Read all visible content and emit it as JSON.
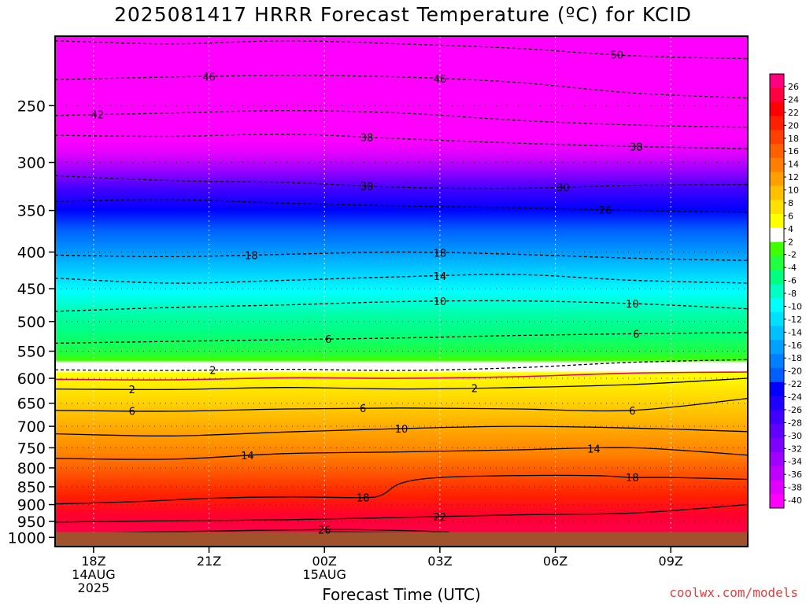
{
  "title": "2025081417 HRRR Forecast Temperature (ºC) for KCID",
  "credit": "coolwx.com/models",
  "chart_data": {
    "type": "heatmap",
    "title": "2025081417 HRRR Forecast Temperature (ºC) for KCID",
    "xlabel": "Forecast Time (UTC)",
    "ylabel": "",
    "x_ticks": [
      {
        "hour": 1,
        "lines": [
          "18Z",
          "14AUG",
          "2025"
        ]
      },
      {
        "hour": 4,
        "lines": [
          "21Z"
        ]
      },
      {
        "hour": 7,
        "lines": [
          "00Z",
          "15AUG"
        ]
      },
      {
        "hour": 10,
        "lines": [
          "03Z"
        ]
      },
      {
        "hour": 13,
        "lines": [
          "06Z"
        ]
      },
      {
        "hour": 16,
        "lines": [
          "09Z"
        ]
      }
    ],
    "x_range_hours": [
      0,
      18
    ],
    "y_ticks": [
      250,
      300,
      350,
      400,
      450,
      500,
      550,
      600,
      650,
      700,
      750,
      800,
      850,
      900,
      950,
      1000
    ],
    "y_range_mb": [
      200,
      1030
    ],
    "y_scale": "log-pressure",
    "colorbar_ticks": [
      26,
      24,
      22,
      20,
      18,
      16,
      14,
      12,
      10,
      8,
      6,
      4,
      2,
      -2,
      -4,
      -6,
      -8,
      -10,
      -12,
      -14,
      -16,
      -18,
      -20,
      -22,
      -24,
      -26,
      -28,
      -30,
      -32,
      -34,
      -36,
      -38,
      -40
    ],
    "colorbar_colors": [
      "#ff0080",
      "#ff0040",
      "#ff0000",
      "#ff2000",
      "#ff4000",
      "#ff6000",
      "#ff8000",
      "#ffa000",
      "#ffc000",
      "#ffe000",
      "#ffff00",
      "#ffffff",
      "#40ff00",
      "#20ff40",
      "#00ff80",
      "#00ffc0",
      "#00ffff",
      "#00e0ff",
      "#00c0ff",
      "#00a0ff",
      "#0080ff",
      "#0060ff",
      "#0000ff",
      "#2000ff",
      "#4000ff",
      "#6000ff",
      "#8000ff",
      "#a000ff",
      "#c000ff",
      "#e000ff",
      "#ff00ff"
    ],
    "ground_color": "#a0522d",
    "grid": true,
    "contours": [
      {
        "value": 50,
        "style": "dashed",
        "x": [
          0,
          3,
          6,
          9,
          12,
          15,
          18
        ],
        "y_mb": [
          203,
          205,
          203,
          205,
          208,
          213,
          215
        ],
        "labels": [
          {
            "text": "50",
            "hour": 14.6
          }
        ]
      },
      {
        "value": 46,
        "style": "dashed",
        "x": [
          0,
          3,
          6,
          9,
          12,
          15,
          18
        ],
        "y_mb": [
          230,
          228,
          227,
          228,
          232,
          240,
          244
        ],
        "labels": [
          {
            "text": "46",
            "hour": 4
          },
          {
            "text": "46",
            "hour": 10
          }
        ]
      },
      {
        "value": 42,
        "style": "dashed",
        "x": [
          0,
          3,
          6,
          9,
          12,
          15,
          18
        ],
        "y_mb": [
          258,
          256,
          254,
          256,
          262,
          266,
          268
        ],
        "labels": [
          {
            "text": "42",
            "hour": 1.1
          }
        ]
      },
      {
        "value": 38,
        "style": "dashed",
        "x": [
          0,
          3,
          6,
          9,
          12,
          15,
          18
        ],
        "y_mb": [
          275,
          276,
          274,
          278,
          282,
          285,
          287
        ],
        "labels": [
          {
            "text": "38",
            "hour": 8.1
          },
          {
            "text": "38",
            "hour": 15.1
          }
        ]
      },
      {
        "value": 30,
        "style": "dashed",
        "x": [
          0,
          3,
          6,
          9,
          12,
          15,
          18
        ],
        "y_mb": [
          313,
          318,
          320,
          325,
          326,
          323,
          322
        ],
        "labels": [
          {
            "text": "30",
            "hour": 8.1
          },
          {
            "text": "30",
            "hour": 13.2
          }
        ]
      },
      {
        "value": 26,
        "style": "dashed",
        "x": [
          0,
          3,
          6,
          9,
          12,
          15,
          18
        ],
        "y_mb": [
          340,
          338,
          342,
          345,
          347,
          350,
          352
        ],
        "labels": [
          {
            "text": "26",
            "hour": 14.3
          }
        ]
      },
      {
        "value": 18,
        "style": "dashed",
        "x": [
          0,
          3,
          6,
          9,
          12,
          15,
          18
        ],
        "y_mb": [
          404,
          406,
          403,
          400,
          403,
          408,
          411
        ],
        "labels": [
          {
            "text": "18",
            "hour": 5.1
          },
          {
            "text": "18",
            "hour": 10
          }
        ]
      },
      {
        "value": 14,
        "style": "dashed",
        "x": [
          0,
          3,
          6,
          9,
          12,
          15,
          18
        ],
        "y_mb": [
          435,
          442,
          438,
          433,
          430,
          438,
          442
        ],
        "labels": [
          {
            "text": "14",
            "hour": 10
          }
        ]
      },
      {
        "value": 10,
        "style": "dashed",
        "x": [
          0,
          3,
          6,
          9,
          12,
          15,
          18
        ],
        "y_mb": [
          484,
          478,
          474,
          469,
          468,
          472,
          480
        ],
        "labels": [
          {
            "text": "10",
            "hour": 10
          },
          {
            "text": "10",
            "hour": 15
          }
        ]
      },
      {
        "value": 6,
        "style": "dashed",
        "x": [
          0,
          3,
          6,
          9,
          12,
          15,
          18
        ],
        "y_mb": [
          536,
          533,
          530,
          527,
          523,
          520,
          518
        ],
        "labels": [
          {
            "text": "6",
            "hour": 7.1
          },
          {
            "text": "6",
            "hour": 15.1
          }
        ]
      },
      {
        "value": 2,
        "style": "dashed",
        "x": [
          0,
          3,
          6,
          9,
          12,
          15,
          18
        ],
        "y_mb": [
          584,
          585,
          583,
          585,
          580,
          570,
          565
        ],
        "labels": [
          {
            "text": "2",
            "hour": 4.1
          }
        ]
      },
      {
        "value": 0,
        "style": "magenta",
        "x": [
          0,
          3,
          6,
          9,
          12,
          15,
          18
        ],
        "y_mb": [
          602,
          603,
          599,
          600,
          597,
          590,
          588
        ],
        "labels": []
      },
      {
        "value": 2,
        "style": "solid",
        "x": [
          0,
          3,
          6,
          9,
          12,
          15,
          18
        ],
        "y_mb": [
          621,
          622,
          618,
          621,
          618,
          612,
          600
        ],
        "labels": [
          {
            "text": "2",
            "hour": 2
          },
          {
            "text": "2",
            "hour": 10.9
          }
        ]
      },
      {
        "value": 6,
        "style": "solid",
        "x": [
          0,
          3,
          6,
          9,
          12,
          15,
          18
        ],
        "y_mb": [
          665,
          667,
          662,
          660,
          662,
          665,
          640
        ],
        "labels": [
          {
            "text": "6",
            "hour": 2
          },
          {
            "text": "6",
            "hour": 8
          },
          {
            "text": "6",
            "hour": 15
          }
        ]
      },
      {
        "value": 10,
        "style": "solid",
        "x": [
          0,
          3,
          6,
          9,
          12,
          15,
          18
        ],
        "y_mb": [
          717,
          722,
          713,
          705,
          700,
          704,
          712
        ],
        "labels": [
          {
            "text": "10",
            "hour": 9
          }
        ]
      },
      {
        "value": 14,
        "style": "solid",
        "x": [
          0,
          3,
          6,
          9,
          12,
          15,
          18
        ],
        "y_mb": [
          776,
          778,
          764,
          760,
          755,
          750,
          768
        ],
        "labels": [
          {
            "text": "14",
            "hour": 5
          },
          {
            "text": "14",
            "hour": 14
          }
        ]
      },
      {
        "value": 18,
        "style": "solid",
        "x": [
          0,
          2,
          4,
          6,
          8,
          8.5,
          9,
          10,
          12,
          14,
          15,
          16,
          18
        ],
        "y_mb": [
          898,
          892,
          882,
          878,
          880,
          872,
          840,
          825,
          820,
          820,
          825,
          825,
          830
        ],
        "labels": [
          {
            "text": "18",
            "hour": 8
          },
          {
            "text": "18",
            "hour": 15
          }
        ]
      },
      {
        "value": 22,
        "style": "solid",
        "x": [
          0,
          3,
          6,
          9,
          12,
          15,
          18
        ],
        "y_mb": [
          952,
          948,
          945,
          938,
          930,
          925,
          900
        ],
        "labels": [
          {
            "text": "22",
            "hour": 10
          }
        ]
      },
      {
        "value": 26,
        "style": "solid",
        "x": [
          1.3,
          4,
          7,
          9,
          10,
          10.2,
          9.5,
          7
        ],
        "y_mb": [
          985,
          980,
          975,
          978,
          982,
          983,
          985,
          982
        ],
        "labels": [
          {
            "text": "26",
            "hour": 7
          }
        ]
      }
    ]
  }
}
